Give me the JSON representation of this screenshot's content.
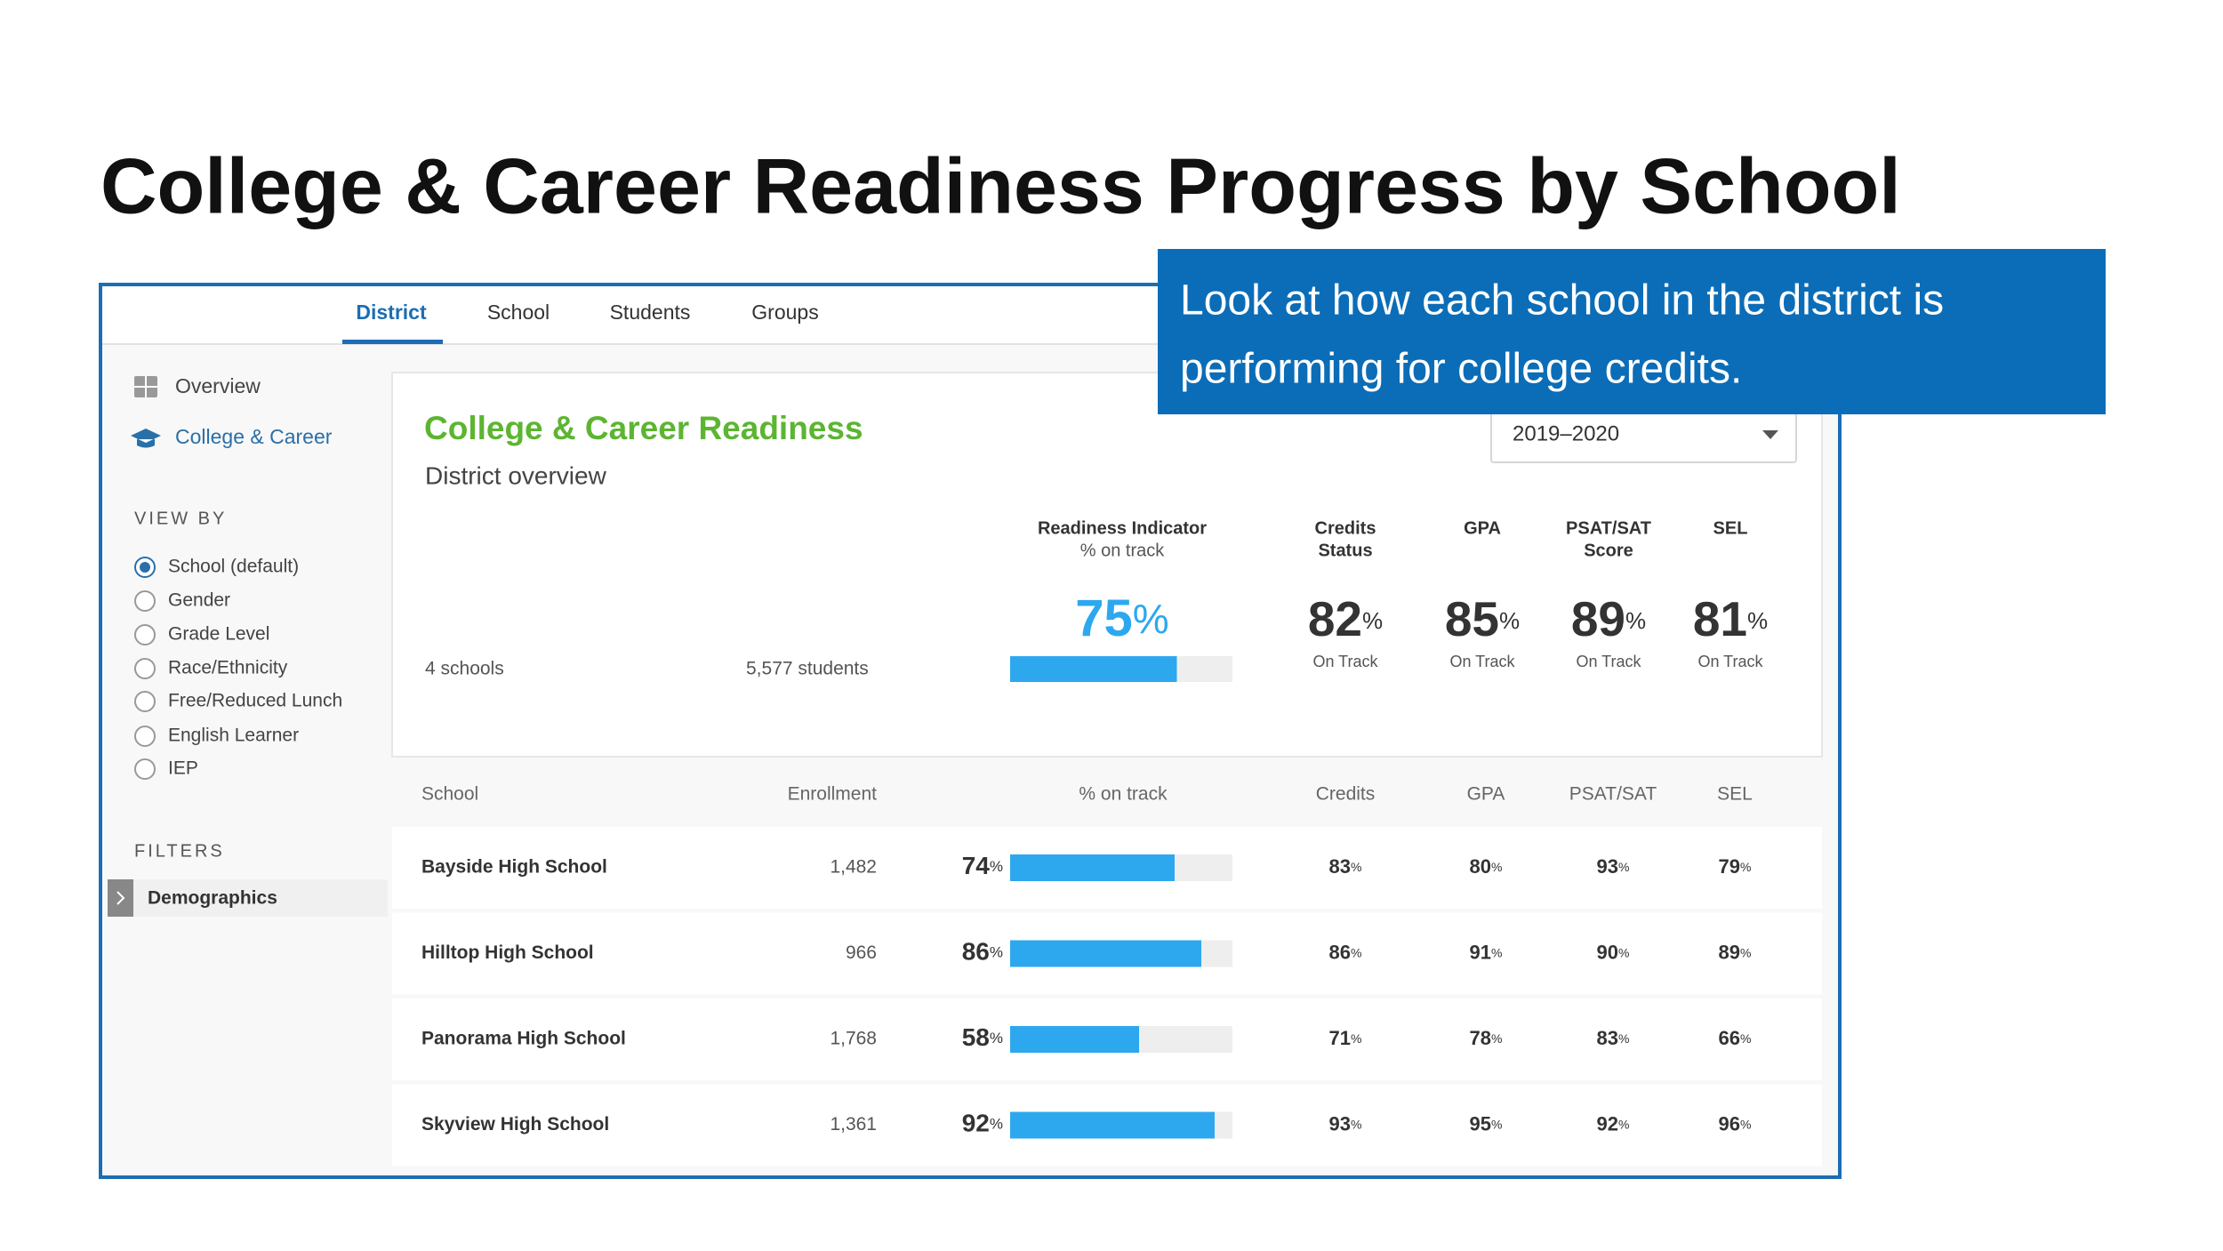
{
  "title": "College & Career Readiness Progress by School",
  "callout": [
    "Look at how each school in the district is",
    "performing for college credits."
  ],
  "tabs": [
    "District",
    "School",
    "Students",
    "Groups"
  ],
  "sidebar": {
    "nav": [
      "Overview",
      "College & Career"
    ],
    "view_by_heading": "VIEW BY",
    "view_by": [
      "School (default)",
      "Gender",
      "Grade Level",
      "Race/Ethnicity",
      "Free/Reduced Lunch",
      "English Learner",
      "IEP"
    ],
    "filters_heading": "FILTERS",
    "filters": [
      "Demographics"
    ]
  },
  "card": {
    "title": "College & Career Readiness",
    "subtitle": "District overview",
    "year": "2019–2020",
    "schools": "4 schools",
    "students": "5,577 students",
    "readiness": {
      "label": "Readiness Indicator",
      "sublabel": "% on track",
      "value": 75
    },
    "on_track_label": "On Track",
    "metrics": [
      {
        "label": [
          "Credits",
          "Status"
        ],
        "value": 82
      },
      {
        "label": [
          "GPA"
        ],
        "value": 85
      },
      {
        "label": [
          "PSAT/SAT",
          "Score"
        ],
        "value": 89
      },
      {
        "label": [
          "SEL"
        ],
        "value": 81
      }
    ]
  },
  "percent_sign": "%",
  "table": {
    "columns": [
      "School",
      "Enrollment",
      "% on track",
      "Credits",
      "GPA",
      "PSAT/SAT",
      "SEL"
    ],
    "rows": [
      {
        "school": "Bayside High School",
        "enrollment": "1,482",
        "on_track": 74,
        "credits": 83,
        "gpa": 80,
        "psat_sat": 93,
        "sel": 79
      },
      {
        "school": "Hilltop High School",
        "enrollment": "966",
        "on_track": 86,
        "credits": 86,
        "gpa": 91,
        "psat_sat": 90,
        "sel": 89
      },
      {
        "school": "Panorama High School",
        "enrollment": "1,768",
        "on_track": 58,
        "credits": 71,
        "gpa": 78,
        "psat_sat": 83,
        "sel": 66
      },
      {
        "school": "Skyview High School",
        "enrollment": "1,361",
        "on_track": 92,
        "credits": 93,
        "gpa": 95,
        "psat_sat": 92,
        "sel": 96
      }
    ]
  }
}
